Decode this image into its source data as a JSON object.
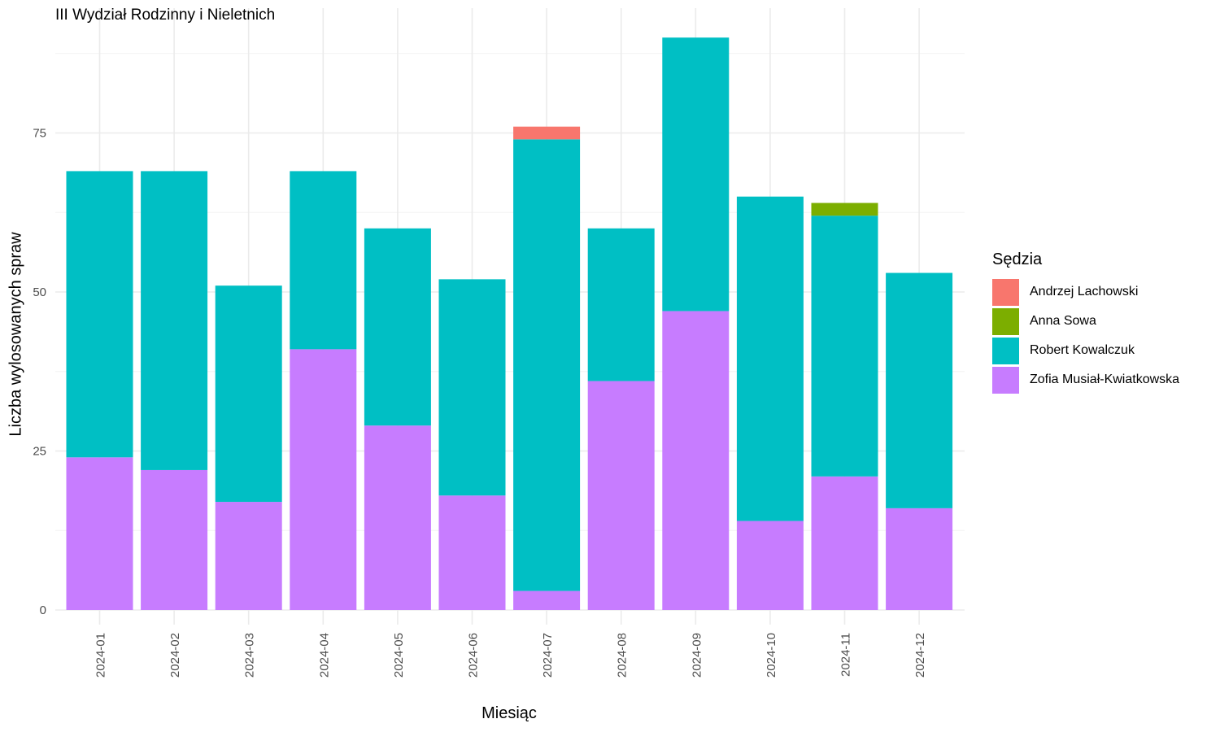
{
  "chart_data": {
    "type": "bar",
    "stacked": true,
    "title": "III Wydział Rodzinny i Nieletnich",
    "xlabel": "Miesiąc",
    "ylabel": "Liczba wylosowanych spraw",
    "ylim": [
      0,
      94
    ],
    "yticks": [
      0,
      25,
      50,
      75
    ],
    "grid": true,
    "legend_position": "right",
    "legend_title": "Sędzia",
    "categories": [
      "2024-01",
      "2024-02",
      "2024-03",
      "2024-04",
      "2024-05",
      "2024-06",
      "2024-07",
      "2024-08",
      "2024-09",
      "2024-10",
      "2024-11",
      "2024-12"
    ],
    "series": [
      {
        "name": "Zofia Musiał-Kwiatkowska",
        "color": "#C77CFF",
        "values": [
          24,
          22,
          17,
          41,
          29,
          18,
          3,
          36,
          47,
          14,
          21,
          16
        ]
      },
      {
        "name": "Robert Kowalczuk",
        "color": "#00BFC4",
        "values": [
          45,
          47,
          34,
          28,
          31,
          34,
          71,
          24,
          43,
          51,
          41,
          37
        ]
      },
      {
        "name": "Anna Sowa",
        "color": "#7CAE00",
        "values": [
          0,
          0,
          0,
          0,
          0,
          0,
          0,
          0,
          0,
          0,
          2,
          0
        ]
      },
      {
        "name": "Andrzej Lachowski",
        "color": "#F8766D",
        "values": [
          0,
          0,
          0,
          0,
          0,
          0,
          2,
          0,
          0,
          0,
          0,
          0
        ]
      }
    ],
    "legend_order": [
      "Andrzej Lachowski",
      "Anna Sowa",
      "Robert Kowalczuk",
      "Zofia Musiał-Kwiatkowska"
    ]
  }
}
